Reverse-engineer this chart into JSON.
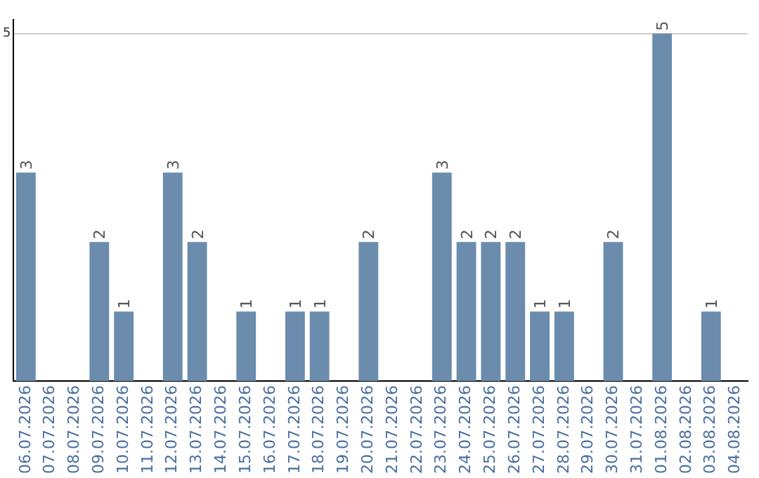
{
  "chart_data": {
    "type": "bar",
    "categories": [
      "06.07.2026",
      "07.07.2026",
      "08.07.2026",
      "09.07.2026",
      "10.07.2026",
      "11.07.2026",
      "12.07.2026",
      "13.07.2026",
      "14.07.2026",
      "15.07.2026",
      "16.07.2026",
      "17.07.2026",
      "18.07.2026",
      "19.07.2026",
      "20.07.2026",
      "21.07.2026",
      "22.07.2026",
      "23.07.2026",
      "24.07.2026",
      "25.07.2026",
      "26.07.2026",
      "27.07.2026",
      "28.07.2026",
      "29.07.2026",
      "30.07.2026",
      "31.07.2026",
      "01.08.2026",
      "02.08.2026",
      "03.08.2026",
      "04.08.2026"
    ],
    "values": [
      3,
      0,
      0,
      2,
      1,
      0,
      3,
      2,
      0,
      1,
      0,
      1,
      1,
      0,
      2,
      0,
      0,
      3,
      2,
      2,
      2,
      1,
      1,
      0,
      2,
      0,
      5,
      0,
      1,
      0
    ],
    "value_labels": [
      "3",
      null,
      null,
      "2",
      "1",
      null,
      "3",
      "2",
      null,
      "1",
      null,
      "1",
      "1",
      null,
      "2",
      null,
      null,
      "3",
      "2",
      "2",
      "2",
      "1",
      "1",
      null,
      "2",
      null,
      "5",
      null,
      "1",
      null
    ],
    "color": "#6b8cad",
    "ylim": [
      0,
      5.2
    ],
    "yticks": [
      5
    ],
    "grid": "y",
    "legend": false
  }
}
